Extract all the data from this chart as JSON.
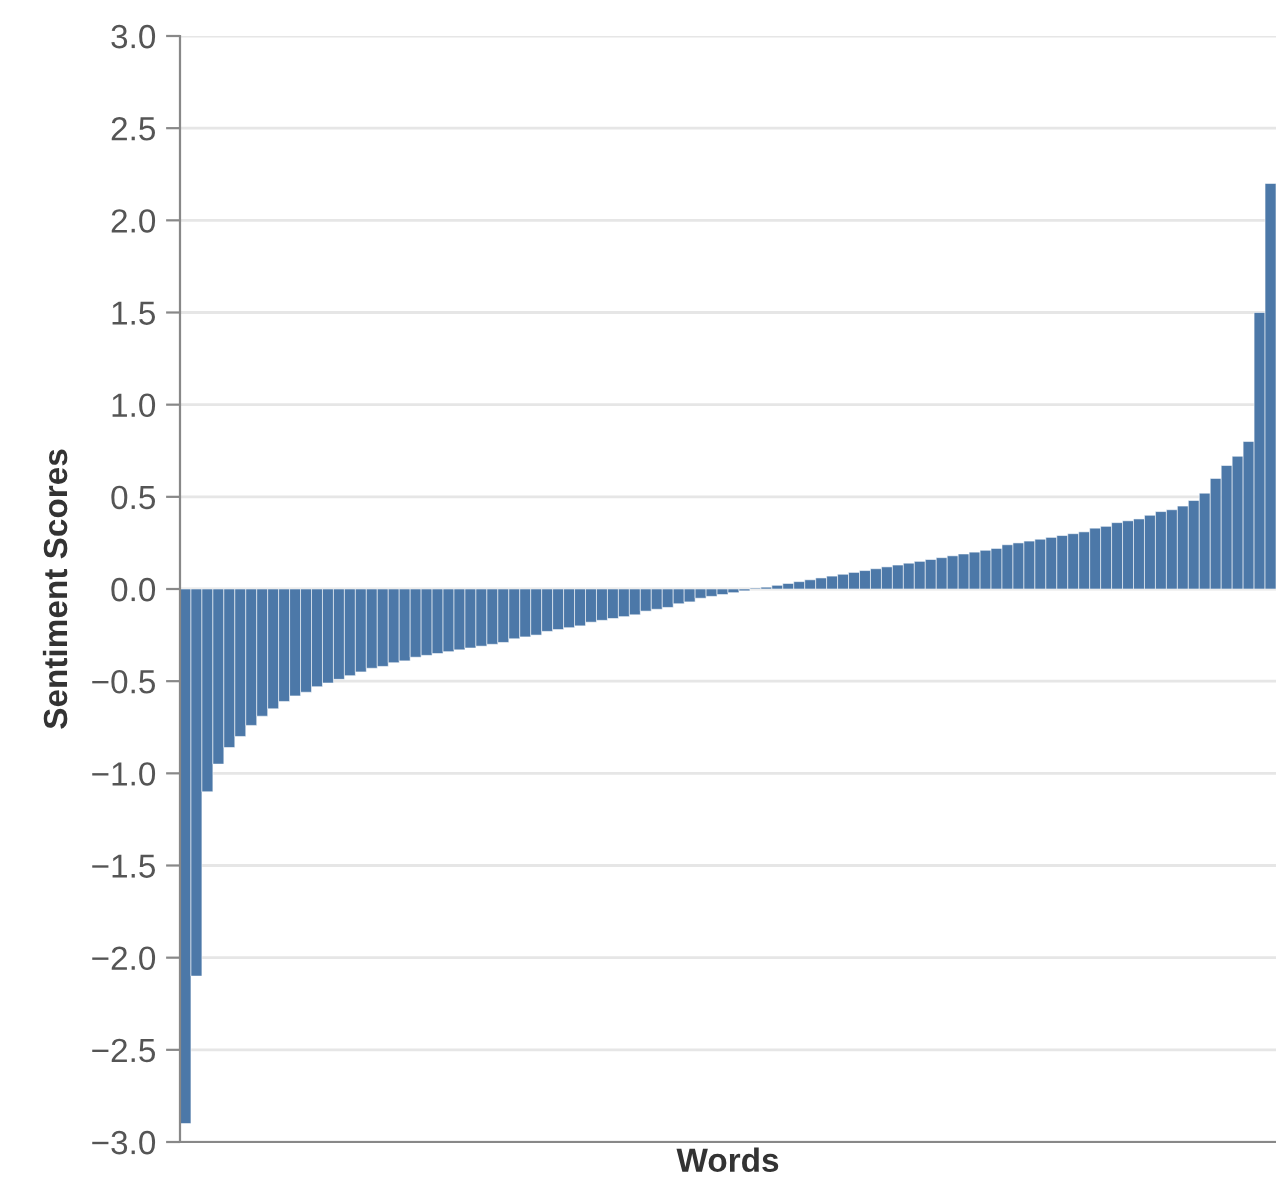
{
  "chart_data": {
    "type": "bar",
    "xlabel": "Words",
    "ylabel": "Sentiment Scores",
    "color": "#4c78a8",
    "categories": [
      null,
      null,
      null,
      null,
      null,
      null,
      null,
      null,
      null,
      null,
      null,
      null,
      null,
      null,
      null,
      null,
      null,
      null,
      null,
      null,
      null,
      null,
      null,
      null,
      null,
      null,
      null,
      null,
      null,
      null,
      null,
      null,
      null,
      null,
      null,
      null,
      null,
      null,
      null,
      null,
      null,
      null,
      null,
      null,
      null,
      null,
      null,
      null,
      null,
      null,
      null,
      null,
      null,
      null,
      null,
      null,
      null,
      null,
      null,
      null,
      null,
      null,
      null,
      null,
      null,
      null,
      null,
      null,
      null,
      null,
      null,
      null,
      null,
      null,
      null,
      null,
      null,
      null,
      null,
      null,
      null,
      null,
      null,
      null,
      null,
      null,
      null,
      null,
      null,
      null,
      null,
      null,
      null,
      null,
      null,
      null,
      null,
      null,
      null,
      null
    ],
    "values": [
      -2.9,
      -2.1,
      -1.1,
      -0.95,
      -0.86,
      -0.8,
      -0.74,
      -0.69,
      -0.65,
      -0.61,
      -0.58,
      -0.56,
      -0.53,
      -0.51,
      -0.49,
      -0.47,
      -0.45,
      -0.43,
      -0.42,
      -0.4,
      -0.39,
      -0.37,
      -0.36,
      -0.35,
      -0.34,
      -0.33,
      -0.32,
      -0.31,
      -0.3,
      -0.29,
      -0.27,
      -0.26,
      -0.25,
      -0.23,
      -0.22,
      -0.21,
      -0.2,
      -0.18,
      -0.17,
      -0.16,
      -0.15,
      -0.14,
      -0.12,
      -0.11,
      -0.1,
      -0.08,
      -0.07,
      -0.05,
      -0.04,
      -0.03,
      -0.02,
      -0.01,
      0.005,
      0.01,
      0.02,
      0.03,
      0.04,
      0.05,
      0.06,
      0.07,
      0.08,
      0.09,
      0.1,
      0.11,
      0.12,
      0.13,
      0.14,
      0.15,
      0.16,
      0.17,
      0.18,
      0.19,
      0.2,
      0.21,
      0.22,
      0.24,
      0.25,
      0.26,
      0.27,
      0.28,
      0.29,
      0.3,
      0.31,
      0.33,
      0.34,
      0.36,
      0.37,
      0.38,
      0.4,
      0.42,
      0.43,
      0.45,
      0.48,
      0.52,
      0.6,
      0.67,
      0.72,
      0.8,
      1.5,
      2.2
    ],
    "ylim": [
      -3,
      3
    ],
    "yticks": [
      {
        "value": -3,
        "label": "−3.0"
      },
      {
        "value": -2.5,
        "label": "−2.5"
      },
      {
        "value": -2,
        "label": "−2.0"
      },
      {
        "value": -1.5,
        "label": "−1.5"
      },
      {
        "value": -1,
        "label": "−1.0"
      },
      {
        "value": -0.5,
        "label": "−0.5"
      },
      {
        "value": 0,
        "label": "0.0"
      },
      {
        "value": 0.5,
        "label": "0.5"
      },
      {
        "value": 1,
        "label": "1.0"
      },
      {
        "value": 1.5,
        "label": "1.5"
      },
      {
        "value": 2,
        "label": "2.0"
      },
      {
        "value": 2.5,
        "label": "2.5"
      },
      {
        "value": 3,
        "label": "3.0"
      }
    ],
    "grid": "y",
    "tick_labels": "y"
  }
}
